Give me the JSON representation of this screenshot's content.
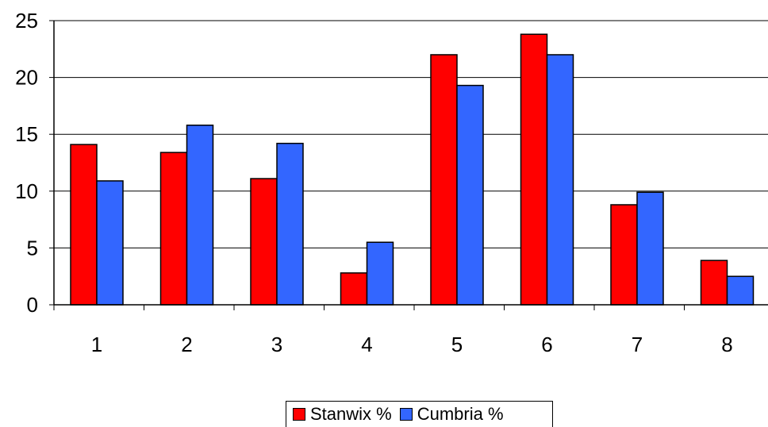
{
  "chart_data": {
    "type": "bar",
    "categories": [
      "1",
      "2",
      "3",
      "4",
      "5",
      "6",
      "7",
      "8"
    ],
    "series": [
      {
        "name": "Stanwix %",
        "color": "#FF0000",
        "values": [
          14.1,
          13.4,
          11.1,
          2.8,
          22.0,
          23.8,
          8.8,
          3.9
        ]
      },
      {
        "name": "Cumbria %",
        "color": "#3366FF",
        "values": [
          10.9,
          15.8,
          14.2,
          5.5,
          19.3,
          22.0,
          9.9,
          2.5
        ]
      }
    ],
    "title": "",
    "xlabel": "",
    "ylabel": "",
    "ylim": [
      0,
      25
    ],
    "yticks": [
      "0",
      "5",
      "10",
      "15",
      "20",
      "25"
    ],
    "grid": true,
    "legend_position": "bottom"
  }
}
